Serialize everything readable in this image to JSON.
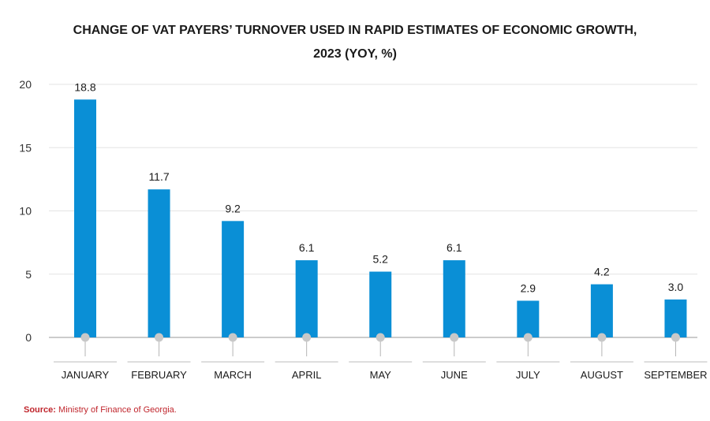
{
  "chart_data": {
    "type": "bar",
    "title": "CHANGE OF VAT PAYERS’ TURNOVER USED IN RAPID ESTIMATES OF ECONOMIC GROWTH,",
    "subtitle": "2023 (YOY, %)",
    "categories": [
      "JANUARY",
      "FEBRUARY",
      "MARCH",
      "APRIL",
      "MAY",
      "JUNE",
      "JULY",
      "AUGUST",
      "SEPTEMBER"
    ],
    "values": [
      18.8,
      11.7,
      9.2,
      6.1,
      5.2,
      6.1,
      2.9,
      4.2,
      3.0
    ],
    "data_labels": [
      "18.8",
      "11.7",
      "9.2",
      "6.1",
      "5.2",
      "6.1",
      "2.9",
      "4.2",
      "3.0"
    ],
    "yticks": [
      "0",
      "5",
      "10",
      "15",
      "20"
    ],
    "ylim": [
      0,
      20
    ],
    "xlabel": "",
    "ylabel": "",
    "grid": true,
    "legend": "none",
    "bar_color": "#0a8fd6",
    "marker_color": "#c8c8c8",
    "grid_color": "#e3e3e3"
  },
  "source": {
    "label": "Source:",
    "text": " Ministry of Finance of Georgia.",
    "color": "#c0262d"
  }
}
